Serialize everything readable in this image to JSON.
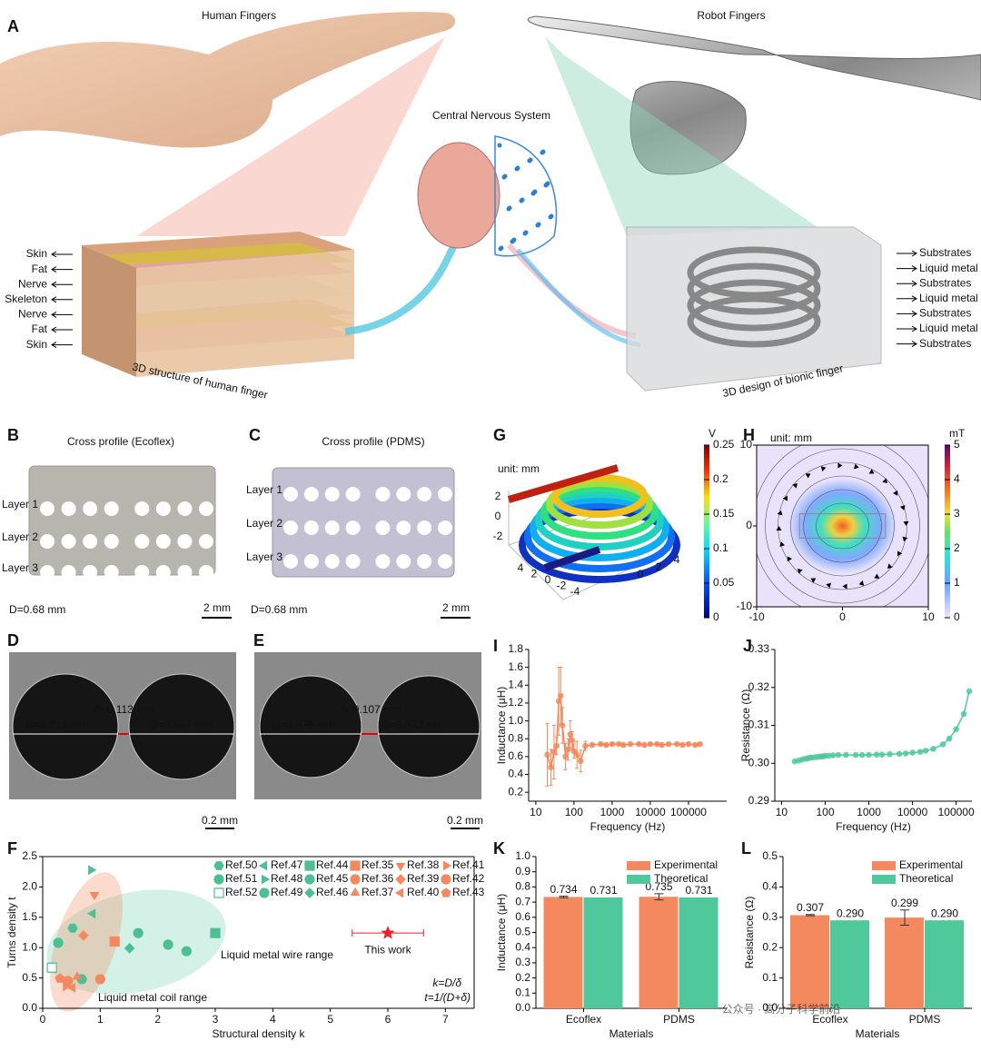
{
  "panel_a": {
    "letter": "A",
    "human_title": "Human Fingers",
    "robot_title": "Robot Fingers",
    "center_title": "Central Nervous System",
    "human_layers": [
      "Skin",
      "Fat",
      "Nerve",
      "Skeleton",
      "Nerve",
      "Fat",
      "Skin"
    ],
    "robot_layers": [
      "Substrates",
      "Liquid metal",
      "Substrates",
      "Liquid metal",
      "Substrates",
      "Liquid metal",
      "Substrates"
    ],
    "human_caption": "3D structure of human finger",
    "robot_caption": "3D design of bionic finger"
  },
  "panel_b": {
    "letter": "B",
    "title": "Cross profile (Ecoflex)",
    "layers": [
      "Layer 1",
      "Layer 2",
      "Layer 3"
    ],
    "diameter": "D=0.68 mm",
    "scale": "2 mm"
  },
  "panel_c": {
    "letter": "C",
    "title": "Cross profile (PDMS)",
    "layers": [
      "Layer 1",
      "Layer 2",
      "Layer 3"
    ],
    "diameter": "D=0.68 mm",
    "scale": "2 mm"
  },
  "panel_d": {
    "letter": "D",
    "d1": "D=0.713 mm",
    "gap": "δ=0.113 mm",
    "d2": "D=0.687 mm",
    "scale": "0.2 mm"
  },
  "panel_e": {
    "letter": "E",
    "d1": "D=0.679 mm",
    "gap": "δ=0.107 mm",
    "d2": "D=0.672 mm",
    "scale": "0.2 mm"
  },
  "panel_g": {
    "letter": "G",
    "unit": "unit: mm",
    "colorbar": {
      "label": "V",
      "lim": [
        0,
        0.25
      ],
      "ticks": [
        0,
        0.05,
        0.1,
        0.15,
        0.2,
        0.25
      ]
    },
    "z_ticks": [
      2,
      0,
      -2
    ],
    "ticks_a": [
      4,
      2,
      0,
      -2,
      -4
    ],
    "ticks_b": [
      0,
      2,
      4
    ]
  },
  "panel_h": {
    "letter": "H",
    "unit": "unit: mm",
    "colorbar": {
      "label": "mT",
      "lim": [
        0,
        5
      ],
      "ticks": [
        0,
        1,
        2,
        3,
        4,
        5
      ]
    },
    "xlim": [
      -10,
      10
    ],
    "xticks": [
      -10,
      0,
      10
    ],
    "ylim": [
      -10,
      10
    ],
    "yticks": [
      -10,
      0,
      10
    ]
  },
  "panel_i": {
    "letter": "I",
    "chart": {
      "type": "line",
      "log_x": true,
      "x_label": "Frequency (Hz)",
      "y_label": "Inductance (μH)",
      "x": [
        20,
        25,
        30,
        35,
        40,
        45,
        50,
        60,
        70,
        80,
        90,
        100,
        120,
        150,
        200,
        300,
        500,
        700,
        1000,
        1500,
        2000,
        3000,
        5000,
        7000,
        10000,
        15000,
        20000,
        30000,
        50000,
        70000,
        100000,
        150000,
        200000
      ],
      "series": [
        {
          "color": "#f08a5d",
          "values": [
            0.62,
            0.48,
            0.65,
            0.72,
            1.22,
            1.28,
            0.95,
            0.6,
            0.68,
            0.85,
            0.78,
            0.66,
            0.62,
            0.55,
            0.72,
            0.73,
            0.74,
            0.73,
            0.74,
            0.74,
            0.73,
            0.74,
            0.74,
            0.73,
            0.74,
            0.74,
            0.73,
            0.74,
            0.74,
            0.73,
            0.74,
            0.73,
            0.74
          ],
          "errors": [
            0.35,
            0.2,
            0.3,
            0.1,
            0.38,
            0.32,
            0.2,
            0.15,
            0.12,
            0.15,
            0.1,
            0.08,
            0.15,
            0.12,
            0.05,
            0.01,
            0.01,
            0.01,
            0.01,
            0.01,
            0.01,
            0.01,
            0.01,
            0.01,
            0.01,
            0.01,
            0.01,
            0.01,
            0.01,
            0.01,
            0.01,
            0.01,
            0.01
          ]
        }
      ],
      "xlim": [
        6.5,
        1000000
      ],
      "xticks": [
        10,
        100,
        1000,
        10000,
        100000
      ],
      "ylim": [
        0.1,
        1.8
      ],
      "yticks": [
        0.2,
        0.4,
        0.6,
        0.8,
        {
          "value": 1,
          "label": "1.0"
        },
        1.2,
        1.4,
        1.6,
        1.8
      ]
    }
  },
  "panel_j": {
    "letter": "J",
    "chart": {
      "type": "line",
      "log_x": true,
      "x_label": "Frequency (Hz)",
      "y_label": "Resistance (Ω)",
      "x": [
        20,
        25,
        30,
        35,
        40,
        45,
        50,
        60,
        70,
        80,
        90,
        100,
        120,
        150,
        200,
        300,
        500,
        700,
        1000,
        1500,
        2000,
        3000,
        5000,
        7000,
        10000,
        15000,
        20000,
        30000,
        50000,
        70000,
        100000,
        150000,
        200000
      ],
      "series": [
        {
          "color": "#4fc99b",
          "values": [
            0.3005,
            0.3007,
            0.301,
            0.3012,
            0.3013,
            0.3015,
            0.3015,
            0.3016,
            0.3017,
            0.3018,
            0.3018,
            0.302,
            0.302,
            0.3021,
            0.3022,
            0.3022,
            0.3022,
            0.3022,
            0.3022,
            0.3023,
            0.3023,
            0.3024,
            0.3025,
            0.3026,
            0.3028,
            0.303,
            0.3033,
            0.3038,
            0.305,
            0.3065,
            0.309,
            0.313,
            0.319
          ]
        }
      ],
      "xlim": [
        7,
        230000
      ],
      "xticks": [
        10,
        100,
        1000,
        10000,
        100000
      ],
      "ylim": [
        0.29,
        0.33
      ],
      "yticks": [
        0.29,
        {
          "value": 0.3,
          "label": "0.30"
        },
        0.31,
        0.32,
        0.33
      ]
    }
  },
  "panel_f": {
    "letter": "F",
    "chart": {
      "type": "scatter",
      "x_label": "Structural density k",
      "y_label": "Turns density t",
      "xlim": [
        0,
        7.5
      ],
      "xticks": [
        0,
        1,
        2,
        3,
        4,
        5,
        6,
        7
      ],
      "ylim": [
        0,
        2.5
      ],
      "yticks": [
        {
          "value": 0,
          "label": "0.0"
        },
        0.5,
        {
          "value": 1,
          "label": "1.0"
        },
        1.5,
        {
          "value": 2,
          "label": "2.0"
        },
        2.5
      ],
      "series": [
        {
          "name": "Ref.50",
          "color": "#4cbf95",
          "marker": "hexagon",
          "x": [
            0.52
          ],
          "values": [
            1.32
          ]
        },
        {
          "name": "Ref.51",
          "color": "#4cbf95",
          "marker": "half-circle",
          "x": [
            0.27
          ],
          "values": [
            1.08
          ]
        },
        {
          "name": "Ref.52",
          "color": "#4cbf95",
          "marker": "open-square",
          "x": [
            0.16
          ],
          "values": [
            0.67
          ]
        },
        {
          "name": "Ref.47",
          "color": "#4cbf95",
          "marker": "triangle-left",
          "x": [
            0.87
          ],
          "values": [
            1.56
          ]
        },
        {
          "name": "Ref.48",
          "color": "#4cbf95",
          "marker": "triangle-right",
          "x": [
            0.84
          ],
          "values": [
            2.28
          ]
        },
        {
          "name": "Ref.49",
          "color": "#4cbf95",
          "marker": "circle",
          "x": [
            2.18,
            2.5
          ],
          "values": [
            1.05,
            0.94
          ]
        },
        {
          "name": "Ref.44",
          "color": "#4cbf95",
          "marker": "square",
          "x": [
            3.0
          ],
          "values": [
            1.24
          ]
        },
        {
          "name": "Ref.45",
          "color": "#4cbf95",
          "marker": "circle",
          "x": [
            0.68,
            1.66
          ],
          "values": [
            0.48,
            1.24
          ]
        },
        {
          "name": "Ref.46",
          "color": "#4cbf95",
          "marker": "diamond",
          "x": [
            1.51
          ],
          "values": [
            0.99
          ]
        },
        {
          "name": "Ref.35",
          "color": "#f4895f",
          "marker": "square",
          "x": [
            1.25
          ],
          "values": [
            1.1
          ]
        },
        {
          "name": "Ref.36",
          "color": "#f4895f",
          "marker": "circle",
          "x": [
            0.44
          ],
          "values": [
            0.45
          ]
        },
        {
          "name": "Ref.37",
          "color": "#f4895f",
          "marker": "triangle-up",
          "x": [
            0.6
          ],
          "values": [
            0.52
          ]
        },
        {
          "name": "Ref.38",
          "color": "#f4895f",
          "marker": "triangle-down",
          "x": [
            0.9
          ],
          "values": [
            1.87
          ]
        },
        {
          "name": "Ref.39",
          "color": "#f4895f",
          "marker": "diamond",
          "x": [
            0.71
          ],
          "values": [
            1.2
          ]
        },
        {
          "name": "Ref.40",
          "color": "#f4895f",
          "marker": "triangle-left",
          "x": [
            0.52
          ],
          "values": [
            0.34
          ]
        },
        {
          "name": "Ref.41",
          "color": "#f4895f",
          "marker": "triangle-right",
          "x": [
            0.4
          ],
          "values": [
            0.36
          ]
        },
        {
          "name": "Ref.42",
          "color": "#f4895f",
          "marker": "circle",
          "x": [
            1.0
          ],
          "values": [
            0.48
          ]
        },
        {
          "name": "Ref.43",
          "color": "#f4895f",
          "marker": "pentagon",
          "x": [
            0.3
          ],
          "values": [
            0.49
          ]
        }
      ],
      "this_work": {
        "label": "This work",
        "color": "#e8212b",
        "x": 6.0,
        "y": 1.24,
        "xerr": 0.62
      },
      "wire_range": "Liquid metal wire range",
      "coil_range": "Liquid metal coil range",
      "formula_k": "k=D/δ",
      "formula_t": "t=1/(D+δ)"
    }
  },
  "panel_k": {
    "letter": "K",
    "chart": {
      "type": "bar",
      "x_label": "Materials",
      "y_label": "Inductance (μH)",
      "categories": [
        "Ecoflex",
        "PDMS"
      ],
      "legend": "upper right",
      "ylim": [
        0,
        1
      ],
      "yticks": [
        {
          "value": 0,
          "label": "0.0"
        },
        0.1,
        0.2,
        0.3,
        0.4,
        0.5,
        0.6,
        0.7,
        0.8,
        0.9,
        {
          "value": 1,
          "label": "1.0"
        }
      ],
      "series": [
        {
          "name": "Experimental",
          "color": "#f4895f",
          "values": [
            0.734,
            0.735
          ],
          "errors": [
            0.005,
            0.02
          ]
        },
        {
          "name": "Theoretical",
          "color": "#4fc99b",
          "values": [
            0.731,
            0.731
          ]
        }
      ]
    }
  },
  "panel_l": {
    "letter": "L",
    "chart": {
      "type": "bar",
      "x_label": "Materials",
      "y_label": "Resistance (Ω)",
      "categories": [
        "Ecoflex",
        "PDMS"
      ],
      "legend": "upper right",
      "ylim": [
        0,
        0.5
      ],
      "yticks": [
        {
          "value": 0,
          "label": "0.0"
        },
        0.1,
        0.2,
        0.3,
        0.4,
        0.5
      ],
      "series": [
        {
          "name": "Experimental",
          "color": "#f4895f",
          "values": [
            0.307,
            0.299
          ],
          "errors": [
            0.002,
            0.025
          ]
        },
        {
          "name": "Theoretical",
          "color": "#4fc99b",
          "values": [
            0.29,
            0.29
          ],
          "value_labels": [
            "0.290",
            "0.290"
          ]
        }
      ]
    }
  },
  "watermark": "公众号 · 高分子科学前沿"
}
